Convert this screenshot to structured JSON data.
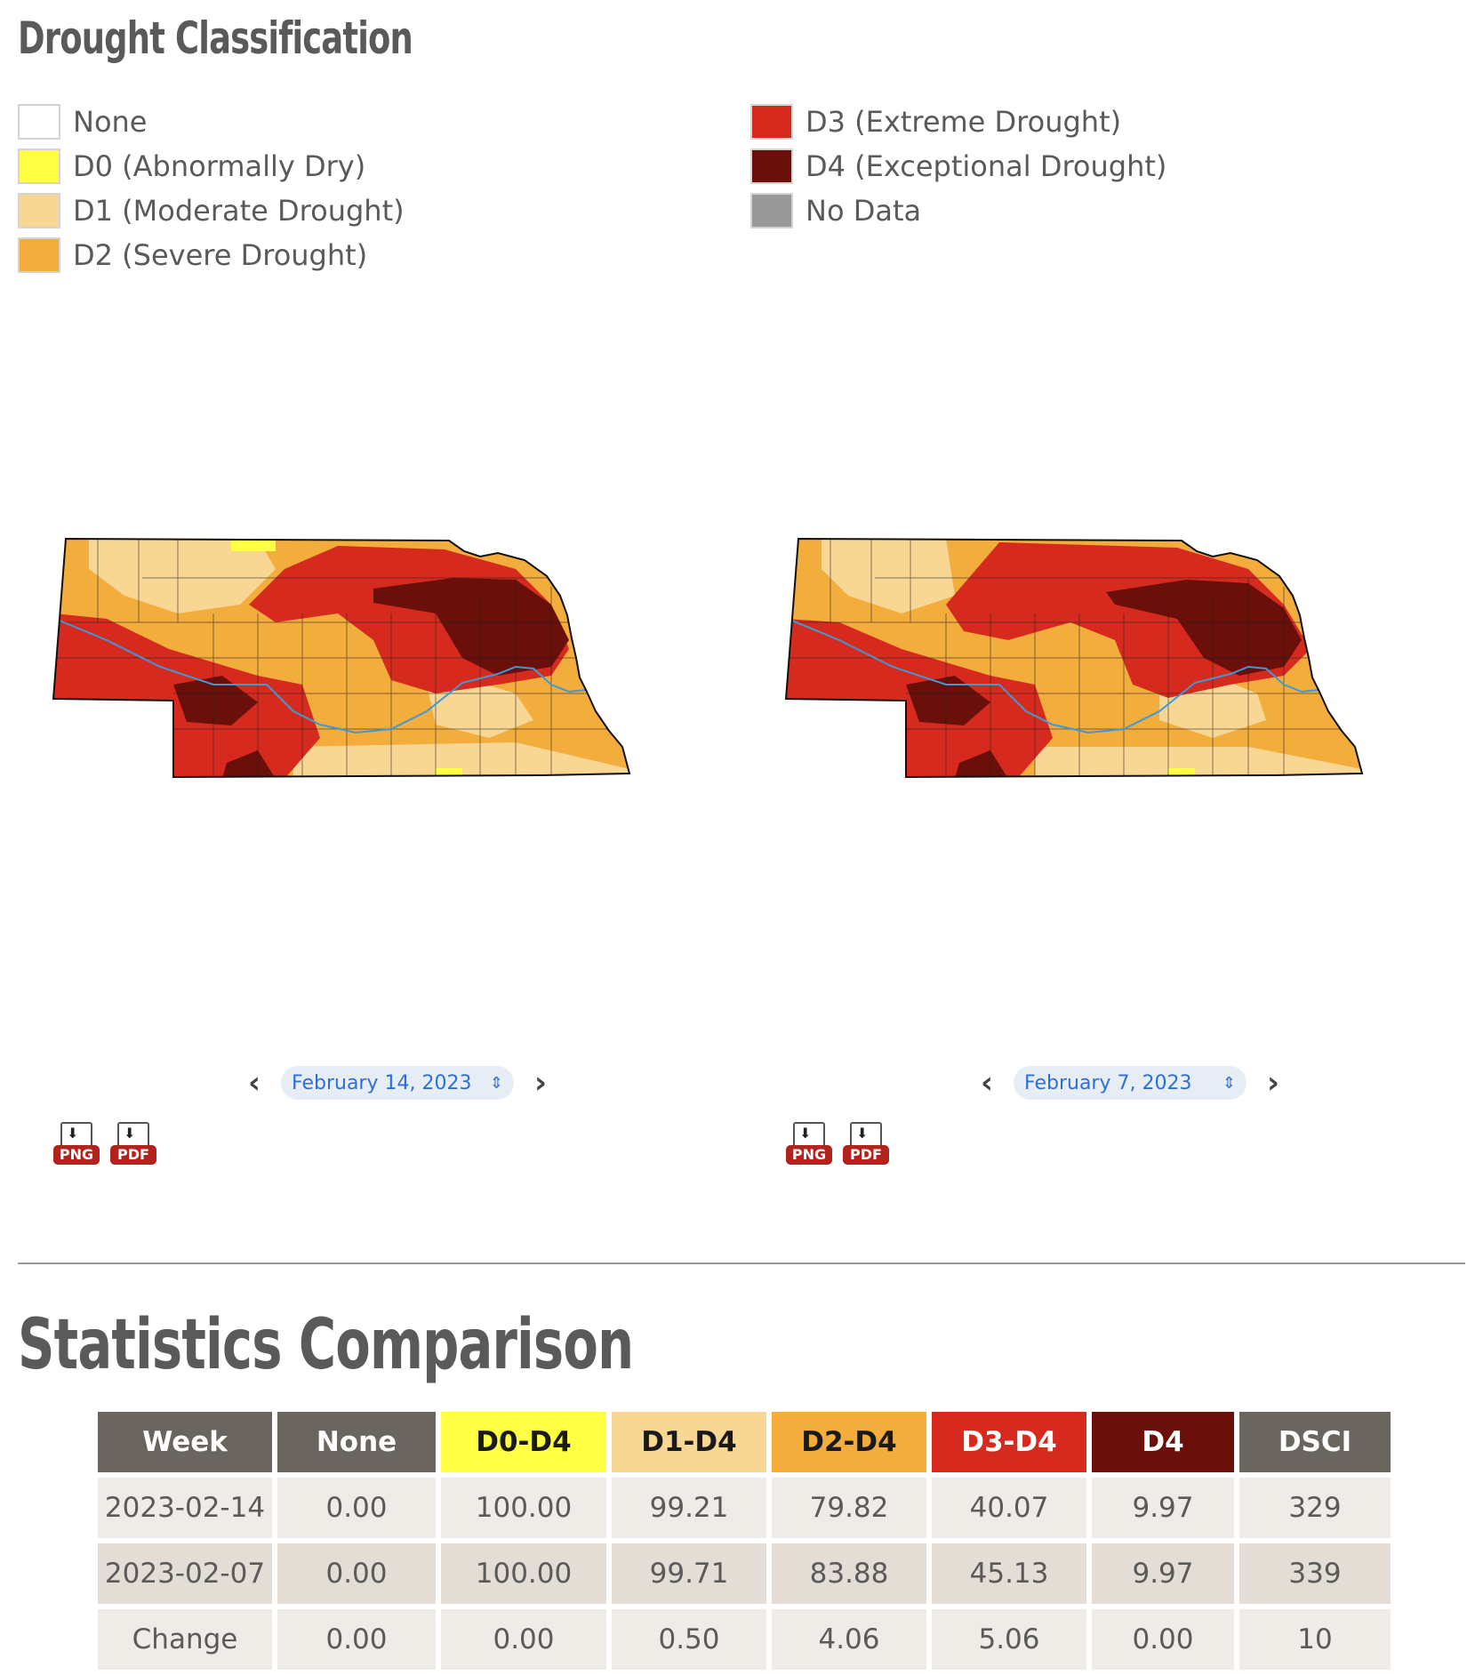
{
  "legend": {
    "title": "Drought Classification",
    "items": [
      {
        "label": "None",
        "color": "#ffffff"
      },
      {
        "label": "D0 (Abnormally Dry)",
        "color": "#ffff44"
      },
      {
        "label": "D1 (Moderate Drought)",
        "color": "#f8d694"
      },
      {
        "label": "D2 (Severe Drought)",
        "color": "#f2ad3d"
      },
      {
        "label": "D3 (Extreme Drought)",
        "color": "#d72a1e"
      },
      {
        "label": "D4 (Exceptional Drought)",
        "color": "#6b0f0b"
      },
      {
        "label": "No Data",
        "color": "#999999"
      }
    ]
  },
  "maps": {
    "left": {
      "date": "February 14, 2023",
      "png_label": "PNG",
      "pdf_label": "PDF"
    },
    "right": {
      "date": "February 7, 2023",
      "png_label": "PNG",
      "pdf_label": "PDF"
    }
  },
  "stats": {
    "title": "Statistics Comparison",
    "headers": [
      "Week",
      "None",
      "D0-D4",
      "D1-D4",
      "D2-D4",
      "D3-D4",
      "D4",
      "DSCI"
    ],
    "header_colors": [
      "#6b6560",
      "#6b6560",
      "#ffff44",
      "#f8d694",
      "#f2ad3d",
      "#d72a1e",
      "#6b0f0b",
      "#6b6560"
    ],
    "rows": [
      [
        "2023-02-14",
        "0.00",
        "100.00",
        "99.21",
        "79.82",
        "40.07",
        "9.97",
        "329"
      ],
      [
        "2023-02-07",
        "0.00",
        "100.00",
        "99.71",
        "83.88",
        "45.13",
        "9.97",
        "339"
      ],
      [
        "Change",
        "0.00",
        "0.00",
        "0.50",
        "4.06",
        "5.06",
        "0.00",
        "10"
      ]
    ]
  }
}
